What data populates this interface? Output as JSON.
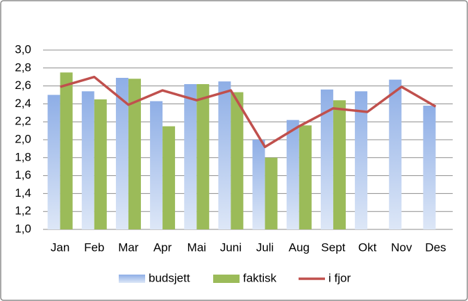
{
  "chart_data": {
    "type": "bar",
    "categories": [
      "Jan",
      "Feb",
      "Mar",
      "Apr",
      "Mai",
      "Juni",
      "Juli",
      "Aug",
      "Sept",
      "Okt",
      "Nov",
      "Des"
    ],
    "series": [
      {
        "name": "budsjett",
        "type": "bar",
        "color": "#95b3e8",
        "values": [
          2.5,
          2.54,
          2.69,
          2.43,
          2.62,
          2.65,
          2.0,
          2.22,
          2.56,
          2.54,
          2.67,
          2.38
        ]
      },
      {
        "name": "faktisk",
        "type": "bar",
        "color": "#9bbb59",
        "values": [
          2.75,
          2.45,
          2.68,
          2.15,
          2.62,
          2.53,
          1.8,
          2.16,
          2.44,
          null,
          null,
          null
        ]
      },
      {
        "name": "i fjor",
        "type": "line",
        "color": "#c0504d",
        "values": [
          2.59,
          2.7,
          2.39,
          2.55,
          2.44,
          2.55,
          1.92,
          2.15,
          2.35,
          2.31,
          2.59,
          2.37
        ]
      }
    ],
    "ylim": [
      1.0,
      3.0
    ],
    "yticks": [
      {
        "value": 1.0,
        "label": "1,0"
      },
      {
        "value": 1.2,
        "label": "1,2"
      },
      {
        "value": 1.4,
        "label": "1,4"
      },
      {
        "value": 1.6,
        "label": "1,6"
      },
      {
        "value": 1.8,
        "label": "1,8"
      },
      {
        "value": 2.0,
        "label": "2,0"
      },
      {
        "value": 2.2,
        "label": "2,2"
      },
      {
        "value": 2.4,
        "label": "2,4"
      },
      {
        "value": 2.6,
        "label": "2,6"
      },
      {
        "value": 2.8,
        "label": "2,8"
      },
      {
        "value": 3.0,
        "label": "3,0"
      }
    ],
    "grid": true,
    "legend": "bottom"
  }
}
